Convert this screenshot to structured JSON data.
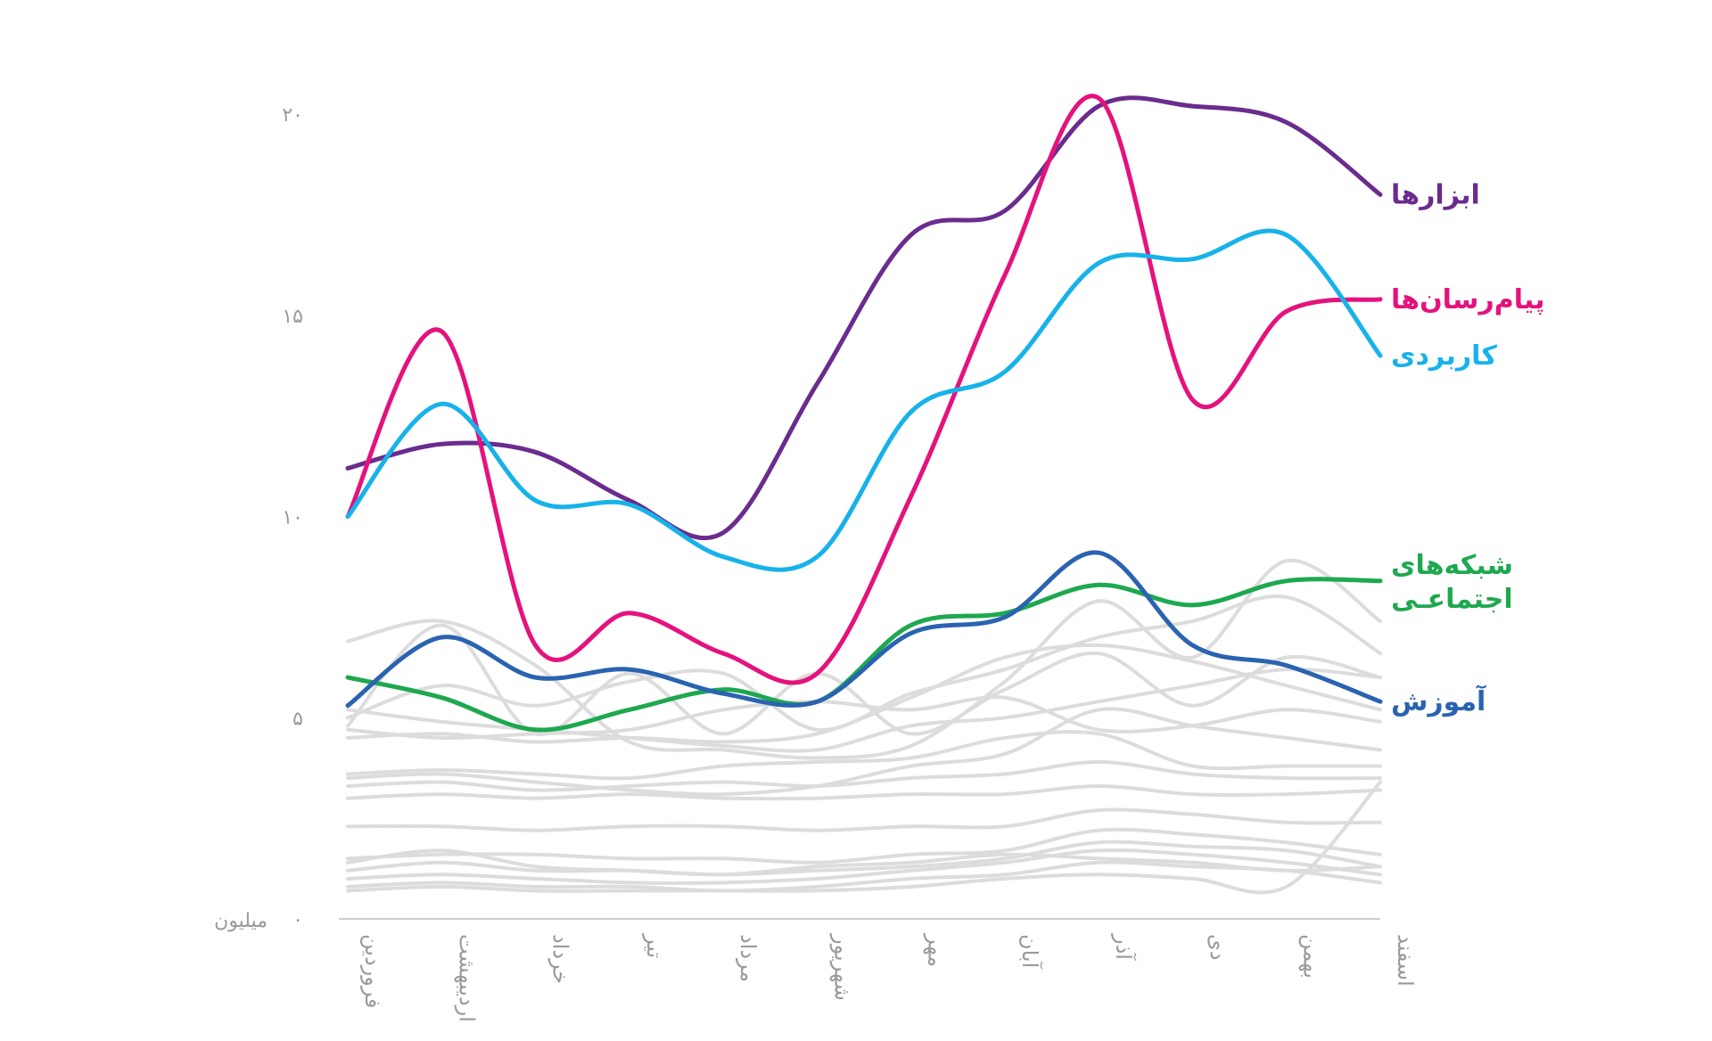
{
  "chart_data": {
    "type": "line",
    "categories": [
      "فروردین",
      "اردیبهشت",
      "خرداد",
      "تیر",
      "مرداد",
      "شهریور",
      "مهر",
      "آبان",
      "آذر",
      "دی",
      "بهمن",
      "اسفند"
    ],
    "yticks": [
      "۰",
      "۵",
      "۱۰",
      "۱۵",
      "۲۰"
    ],
    "ytick_values": [
      0,
      5,
      10,
      15,
      20
    ],
    "y_unit_label": "میلیون",
    "ylim": [
      0,
      21
    ],
    "series": [
      {
        "name": "ابزارها",
        "label_lines": [
          "ابزارها"
        ],
        "color": "#6a2c8e",
        "values": [
          11.2,
          11.8,
          11.6,
          10.4,
          9.6,
          13.3,
          17.0,
          17.6,
          20.2,
          20.2,
          19.8,
          18.0
        ]
      },
      {
        "name": "پیام‌رسان‌ها",
        "label_lines": [
          "پیام‌رسان‌ها"
        ],
        "color": "#e5127d",
        "values": [
          10.0,
          14.6,
          6.8,
          7.6,
          6.6,
          6.1,
          10.5,
          16.0,
          20.4,
          12.9,
          15.1,
          15.4
        ]
      },
      {
        "name": "کاربردی",
        "label_lines": [
          "کاربردی"
        ],
        "color": "#17b2ea",
        "values": [
          10.0,
          12.8,
          10.4,
          10.3,
          9.0,
          9.0,
          12.6,
          13.6,
          16.3,
          16.4,
          17.0,
          14.0
        ]
      },
      {
        "name": "شبکه‌های اجتماعی",
        "label_lines": [
          "شبکه‌های",
          "اجتماعـی"
        ],
        "color": "#1ea84f",
        "values": [
          6.0,
          5.5,
          4.7,
          5.2,
          5.7,
          5.4,
          7.3,
          7.6,
          8.3,
          7.8,
          8.4,
          8.4
        ]
      },
      {
        "name": "آموزش",
        "label_lines": [
          "آموزش"
        ],
        "color": "#2a64b0",
        "values": [
          5.3,
          7.0,
          6.0,
          6.2,
          5.6,
          5.4,
          7.1,
          7.5,
          9.1,
          6.8,
          6.3,
          5.4
        ]
      }
    ],
    "background_series": [
      [
        6.9,
        7.4,
        6.3,
        4.4,
        4.2,
        4.0,
        4.3,
        5.9,
        7.9,
        6.5,
        8.9,
        7.4
      ],
      [
        4.8,
        7.3,
        4.6,
        6.1,
        4.6,
        6.1,
        4.6,
        5.7,
        6.6,
        5.3,
        6.5,
        6.0
      ],
      [
        5.0,
        5.8,
        5.3,
        5.9,
        6.1,
        4.7,
        5.6,
        6.2,
        7.0,
        7.4,
        8.0,
        6.6
      ],
      [
        5.2,
        4.9,
        4.7,
        4.5,
        4.3,
        4.2,
        4.8,
        5.0,
        5.4,
        5.8,
        6.2,
        6.0
      ],
      [
        4.5,
        4.6,
        4.4,
        4.5,
        4.4,
        4.6,
        5.5,
        6.5,
        6.8,
        6.4,
        5.8,
        5.2
      ],
      [
        4.7,
        4.5,
        4.6,
        4.7,
        5.2,
        5.4,
        5.2,
        5.5,
        4.7,
        4.8,
        5.2,
        4.9
      ],
      [
        3.6,
        3.7,
        3.6,
        3.5,
        3.8,
        3.9,
        4.0,
        4.5,
        4.6,
        3.8,
        3.8,
        3.8
      ],
      [
        3.3,
        3.4,
        3.2,
        3.3,
        3.4,
        3.3,
        3.5,
        3.6,
        3.9,
        3.6,
        3.5,
        3.5
      ],
      [
        3.5,
        3.6,
        3.4,
        3.2,
        3.1,
        3.3,
        3.8,
        4.1,
        5.2,
        4.8,
        4.5,
        4.2
      ],
      [
        3.0,
        3.1,
        3.0,
        3.1,
        3.0,
        3.0,
        3.1,
        3.1,
        3.3,
        3.1,
        3.1,
        3.2
      ],
      [
        2.3,
        2.3,
        2.2,
        2.3,
        2.3,
        2.2,
        2.3,
        2.3,
        2.7,
        2.6,
        2.4,
        2.4
      ],
      [
        1.5,
        1.6,
        1.6,
        1.5,
        1.5,
        1.4,
        1.6,
        1.7,
        2.2,
        2.1,
        1.9,
        1.6
      ],
      [
        1.2,
        1.4,
        1.2,
        1.2,
        1.1,
        1.2,
        1.3,
        1.5,
        1.9,
        1.8,
        1.7,
        1.3
      ],
      [
        1.0,
        1.1,
        1.0,
        0.9,
        0.9,
        1.0,
        1.2,
        1.4,
        1.7,
        1.6,
        1.4,
        1.1
      ],
      [
        0.8,
        0.9,
        0.8,
        0.8,
        0.7,
        0.8,
        1.0,
        1.1,
        1.4,
        1.3,
        1.2,
        0.9
      ],
      [
        0.7,
        0.8,
        0.7,
        0.7,
        0.7,
        0.7,
        0.8,
        1.0,
        1.1,
        1.0,
        0.8,
        3.4
      ],
      [
        1.4,
        1.7,
        1.3,
        1.2,
        1.1,
        1.3,
        1.4,
        1.6,
        1.5,
        1.4,
        1.2,
        1.3
      ]
    ],
    "colors": {
      "axis": "#cccccc",
      "tick_text": "#9a9a9a",
      "background_line": "#dcdcdc"
    }
  }
}
